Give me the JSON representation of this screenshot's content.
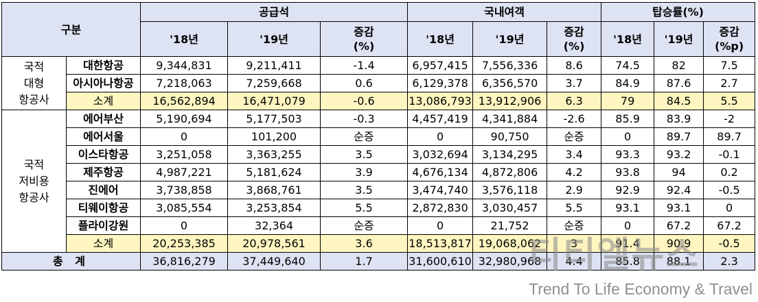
{
  "header": {
    "category": "구분",
    "supply": "공급석",
    "passengers": "국내여객",
    "load_factor": "탑승률(%)",
    "y18": "'18년",
    "y19": "'19년",
    "change": "증감",
    "pct": "(%)",
    "pctp": "(%p)"
  },
  "groups": {
    "major": [
      "국적",
      "대형",
      "항공사"
    ],
    "lcc": [
      "국적",
      "저비용",
      "항공사"
    ]
  },
  "rows": {
    "korean_air": [
      "대한항공",
      "9,344,831",
      "9,211,411",
      "-1.4",
      "6,957,415",
      "7,556,336",
      "8.6",
      "74.5",
      "82",
      "7.5"
    ],
    "asiana": [
      "아시아나항공",
      "7,218,063",
      "7,259,668",
      "0.6",
      "6,129,378",
      "6,356,570",
      "3.7",
      "84.9",
      "87.6",
      "2.7"
    ],
    "major_subtotal": [
      "소계",
      "16,562,894",
      "16,471,079",
      "-0.6",
      "13,086,793",
      "13,912,906",
      "6.3",
      "79",
      "84.5",
      "5.5"
    ],
    "air_busan": [
      "에어부산",
      "5,190,694",
      "5,177,503",
      "-0.3",
      "4,457,419",
      "4,341,884",
      "-2.6",
      "85.9",
      "83.9",
      "-2"
    ],
    "air_seoul": [
      "에어서울",
      "0",
      "101,200",
      "순증",
      "0",
      "90,750",
      "순증",
      "0",
      "89.7",
      "89.7"
    ],
    "eastar": [
      "이스타항공",
      "3,251,058",
      "3,363,255",
      "3.5",
      "3,032,694",
      "3,134,295",
      "3.4",
      "93.3",
      "93.2",
      "-0.1"
    ],
    "jeju": [
      "제주항공",
      "4,987,221",
      "5,181,624",
      "3.9",
      "4,676,134",
      "4,872,806",
      "4.2",
      "93.8",
      "94",
      "0.2"
    ],
    "jin": [
      "진에어",
      "3,738,858",
      "3,868,761",
      "3.5",
      "3,474,740",
      "3,576,118",
      "2.9",
      "92.9",
      "92.4",
      "-0.5"
    ],
    "tway": [
      "티웨이항공",
      "3,085,554",
      "3,253,854",
      "5.5",
      "2,872,830",
      "3,030,457",
      "5.5",
      "93.1",
      "93.1",
      "0"
    ],
    "fly_gangwon": [
      "플라이강원",
      "0",
      "32,364",
      "순증",
      "0",
      "21,752",
      "순증",
      "0",
      "67.2",
      "67.2"
    ],
    "lcc_subtotal": [
      "소계",
      "20,253,385",
      "20,978,561",
      "3.6",
      "18,513,817",
      "19,068,062",
      "3",
      "91.4",
      "90.9",
      "-0.5"
    ],
    "total": [
      "총 계",
      "36,816,279",
      "37,449,640",
      "1.7",
      "31,600,610",
      "32,980,968",
      "4.4",
      "85.8",
      "88.1",
      "2.3"
    ]
  },
  "watermark": {
    "main": "티티엘뉴스",
    "sub": "Trend To Life Economy & Travel"
  }
}
